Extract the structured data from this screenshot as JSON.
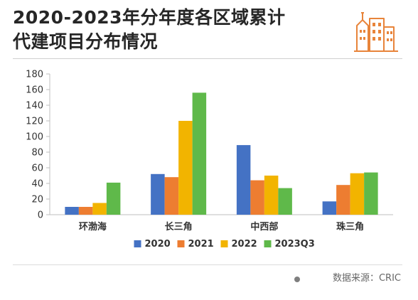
{
  "header": {
    "title_line1": "2020-2023年分年度各区域累计",
    "title_line2": "代建项目分布情况"
  },
  "footer": {
    "source": "数据来源：CRIC"
  },
  "colors": {
    "accent": "#e8843a",
    "series": [
      "#4472c4",
      "#ed7d31",
      "#f2b400",
      "#5fb94a"
    ]
  },
  "chart_data": {
    "type": "bar",
    "categories": [
      "环渤海",
      "长三角",
      "中西部",
      "珠三角"
    ],
    "series": [
      {
        "name": "2020",
        "values": [
          10,
          52,
          89,
          17
        ]
      },
      {
        "name": "2021",
        "values": [
          10,
          48,
          44,
          38
        ]
      },
      {
        "name": "2022",
        "values": [
          15,
          120,
          50,
          53
        ]
      },
      {
        "name": "2023Q3",
        "values": [
          41,
          156,
          34,
          54
        ]
      }
    ],
    "yticks": [
      0,
      20,
      40,
      60,
      80,
      100,
      120,
      140,
      160,
      180
    ],
    "ylim": [
      0,
      180
    ],
    "legend_position": "bottom",
    "grid": false
  }
}
